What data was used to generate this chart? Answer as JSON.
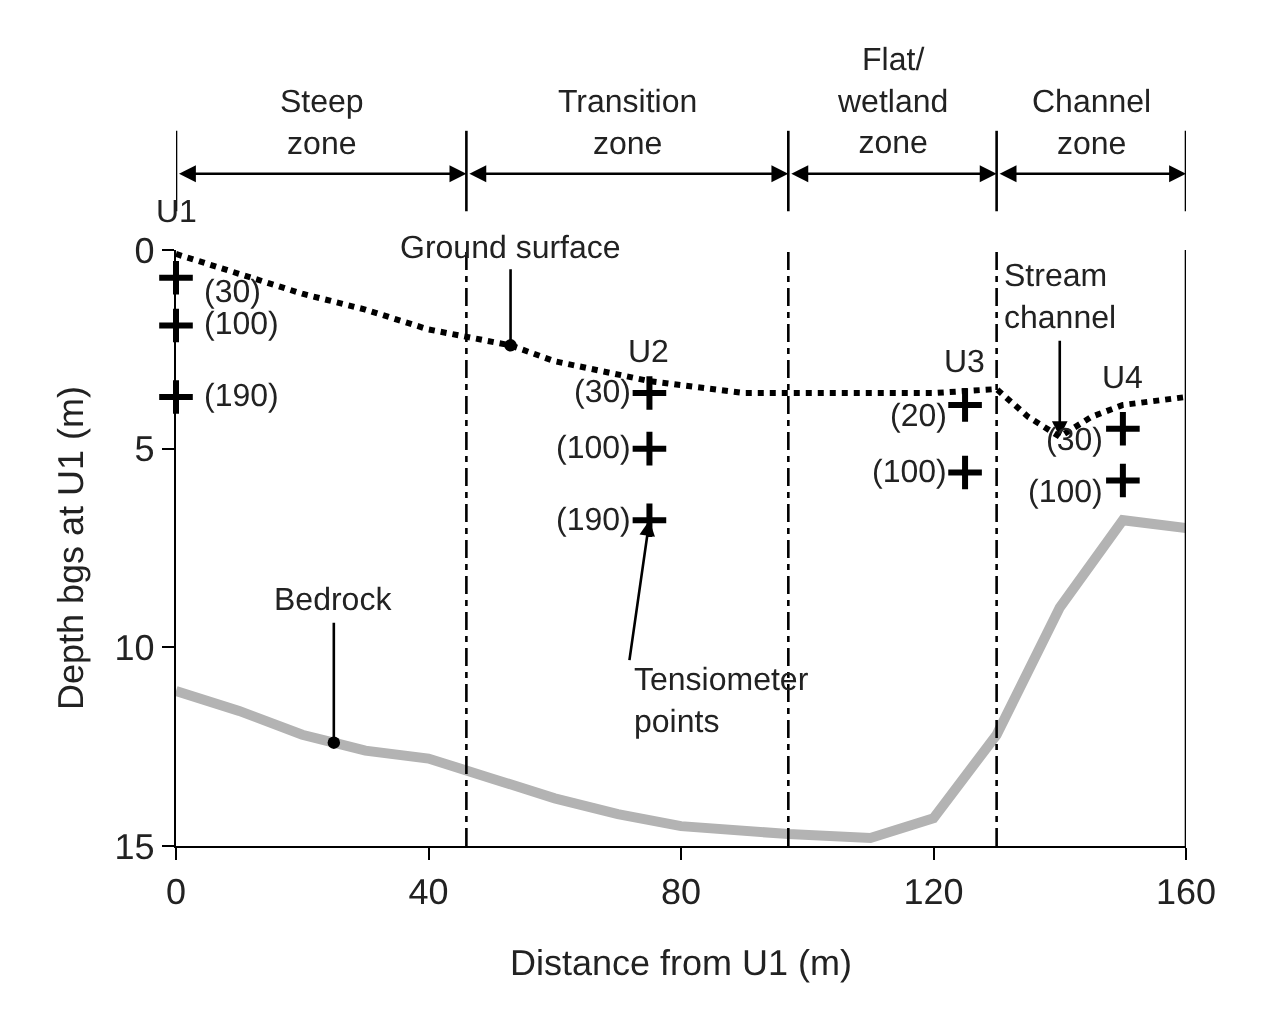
{
  "chart_data": {
    "type": "line",
    "xlabel": "Distance from U1 (m)",
    "ylabel": "Depth bgs at U1 (m)",
    "xlim": [
      0,
      160
    ],
    "xticks": [
      0,
      40,
      80,
      120,
      160
    ],
    "ylim": [
      15,
      0
    ],
    "yticks": [
      0,
      5,
      10,
      15
    ],
    "grid": false,
    "legend": false,
    "series": [
      {
        "color": "#000000",
        "line_style": "dotted",
        "x": [
          0,
          10,
          20,
          30,
          40,
          53,
          60,
          75,
          90,
          97,
          110,
          120,
          130,
          135,
          140,
          145,
          150,
          160
        ],
        "values": [
          0.1,
          0.6,
          1.1,
          1.5,
          2.0,
          2.4,
          2.8,
          3.3,
          3.6,
          3.6,
          3.6,
          3.6,
          3.5,
          4.2,
          4.7,
          4.2,
          3.9,
          3.7
        ]
      },
      {
        "color": "#b3b3b3",
        "line_style": "solid",
        "x": [
          0,
          10,
          20,
          25,
          30,
          40,
          50,
          60,
          70,
          80,
          97,
          110,
          120,
          130,
          140,
          150,
          160
        ],
        "values": [
          11.1,
          11.6,
          12.2,
          12.4,
          12.6,
          12.8,
          13.3,
          13.8,
          14.2,
          14.5,
          14.7,
          14.8,
          14.3,
          12.2,
          9.0,
          6.8,
          7.0
        ]
      },
      {
        "type": "scatter",
        "color": "#000000",
        "marker": "cross",
        "x": [
          0,
          0,
          0,
          75,
          75,
          75,
          125,
          125,
          150,
          150
        ],
        "values": [
          0.7,
          1.9,
          3.7,
          3.6,
          5.0,
          6.8,
          3.9,
          5.6,
          4.5,
          5.8
        ]
      }
    ],
    "ref_lines": [
      {
        "axis": "x",
        "value": 46,
        "line_style": "dashdot",
        "color": "#000000"
      },
      {
        "axis": "x",
        "value": 97,
        "line_style": "dashdot",
        "color": "#000000"
      },
      {
        "axis": "x",
        "value": 130,
        "line_style": "dashdot",
        "color": "#000000"
      },
      {
        "axis": "x",
        "value": 160,
        "line_style": "solid",
        "color": "#000000"
      }
    ],
    "annotations": [
      "Steep\nzone",
      "Transition\nzone",
      "Flat/\nwetland\nzone",
      "Channel\nzone",
      {
        "text": "Ground surface",
        "x": 53,
        "y": 2.4
      },
      {
        "text": "Bedrock",
        "x": 25,
        "y": 12.4
      },
      {
        "text": "Stream\nchannel",
        "x": 140,
        "y": 4.7
      },
      {
        "text": "Tensiometer\npoints",
        "x": 75,
        "y": 6.8
      },
      {
        "text": "U1",
        "x": 0,
        "y": 0.7
      },
      {
        "text": "(30)",
        "x": 0,
        "y": 0.7
      },
      {
        "text": "(100)",
        "x": 0,
        "y": 1.9
      },
      {
        "text": "(190)",
        "x": 0,
        "y": 3.7
      },
      {
        "text": "U2",
        "x": 75,
        "y": 3.6
      },
      {
        "text": "(30)",
        "x": 75,
        "y": 3.6
      },
      {
        "text": "(100)",
        "x": 75,
        "y": 5.0
      },
      {
        "text": "(190)",
        "x": 75,
        "y": 6.8
      },
      {
        "text": "U3",
        "x": 125,
        "y": 3.9
      },
      {
        "text": "(20)",
        "x": 125,
        "y": 3.9
      },
      {
        "text": "(100)",
        "x": 125,
        "y": 5.6
      },
      {
        "text": "U4",
        "x": 150,
        "y": 4.5
      },
      {
        "text": "(30)",
        "x": 150,
        "y": 4.5
      },
      {
        "text": "(100)",
        "x": 150,
        "y": 5.8
      }
    ]
  }
}
